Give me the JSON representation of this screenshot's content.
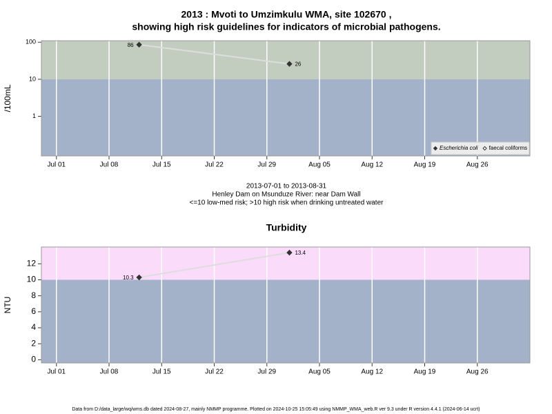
{
  "chart_data": [
    {
      "type": "line",
      "title": [
        "2013 : Mvoti to Umzimkulu WMA, site 102670 ,",
        "showing high risk guidelines for indicators of microbial pathogens."
      ],
      "notes": [
        "2013-07-01 to 2013-08-31",
        "Henley Dam on Msunduze River: near Dam Wall",
        "<=10 low-med risk; >10 high risk when drinking untreated water"
      ],
      "y_label": "/100mL",
      "log_y": true,
      "x": [
        "2013-07-12",
        "2013-08-01"
      ],
      "xlim": [
        "2013-06-29",
        "2013-09-02"
      ],
      "xticks": [
        {
          "value": "2013-07-01",
          "label": "Jul 01"
        },
        {
          "value": "2013-07-08",
          "label": "Jul 08"
        },
        {
          "value": "2013-07-15",
          "label": "Jul 15"
        },
        {
          "value": "2013-07-22",
          "label": "Jul 22"
        },
        {
          "value": "2013-07-29",
          "label": "Jul 29"
        },
        {
          "value": "2013-08-05",
          "label": "Aug 05"
        },
        {
          "value": "2013-08-12",
          "label": "Aug 12"
        },
        {
          "value": "2013-08-19",
          "label": "Aug 19"
        },
        {
          "value": "2013-08-26",
          "label": "Aug 26"
        }
      ],
      "ylim": [
        0.085,
        110
      ],
      "yticks": [
        1,
        10,
        100
      ],
      "threshold": 10,
      "band_colors": {
        "above": "#c2cdc0",
        "below": "#a3b1c9"
      },
      "line_color": "#dddddd",
      "legend": "bottomright",
      "series": [
        {
          "name": "Escherichia coli",
          "color": "#333333",
          "marker": "filled",
          "values": [
            86,
            26
          ]
        },
        {
          "name": "faecal coliforms",
          "color": "#333333",
          "marker": "open",
          "values": [
            null,
            null
          ]
        }
      ]
    },
    {
      "type": "line",
      "title": [
        "Turbidity"
      ],
      "y_label": "NTU",
      "log_y": false,
      "x": [
        "2013-07-12",
        "2013-08-01"
      ],
      "xlim": [
        "2013-06-29",
        "2013-09-02"
      ],
      "xticks": [
        {
          "value": "2013-07-01",
          "label": "Jul 01"
        },
        {
          "value": "2013-07-08",
          "label": "Jul 08"
        },
        {
          "value": "2013-07-15",
          "label": "Jul 15"
        },
        {
          "value": "2013-07-22",
          "label": "Jul 22"
        },
        {
          "value": "2013-07-29",
          "label": "Jul 29"
        },
        {
          "value": "2013-08-05",
          "label": "Aug 05"
        },
        {
          "value": "2013-08-12",
          "label": "Aug 12"
        },
        {
          "value": "2013-08-19",
          "label": "Aug 19"
        },
        {
          "value": "2013-08-26",
          "label": "Aug 26"
        }
      ],
      "ylim": [
        -0.4,
        14.1
      ],
      "yticks": [
        0,
        2,
        4,
        6,
        8,
        10,
        12
      ],
      "threshold": 10,
      "band_colors": {
        "above": "#fadcfa",
        "below": "#a3b1c9"
      },
      "line_color": "#dddddd",
      "series": [
        {
          "name": "Turbidity",
          "color": "#333333",
          "marker": "filled",
          "values": [
            10.3,
            13.4
          ]
        }
      ]
    }
  ],
  "footer": "Data from D:/data_large/wq/wms.db dated 2024-08-27, mainly NMMP programme. Plotted on 2024-10-25 15:05:49 using NMMP_WMA_web.R ver 9.3 under R version 4.4.1 (2024-06-14 ucrt)"
}
